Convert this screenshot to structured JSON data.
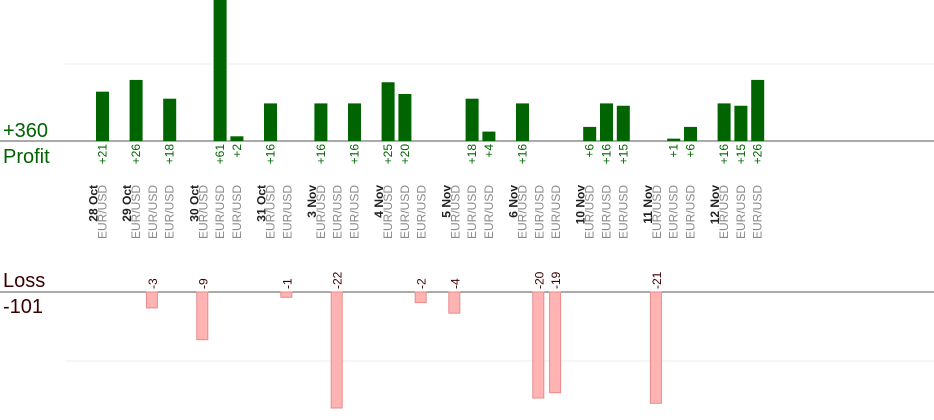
{
  "summary": {
    "profit_total": "+360",
    "profit_label": "Profit",
    "loss_label": "Loss",
    "loss_total": "-101"
  },
  "chart_data": {
    "type": "bar",
    "pair_label": "EUR/USD",
    "date_groups": [
      {
        "date": "28 Oct",
        "trades": [
          21
        ]
      },
      {
        "date": "29 Oct",
        "trades": [
          26,
          -3,
          18
        ]
      },
      {
        "date": "30 Oct",
        "trades": [
          -9,
          61,
          2
        ]
      },
      {
        "date": "31 Oct",
        "trades": [
          16,
          -1
        ]
      },
      {
        "date": "3 Nov",
        "trades": [
          16,
          -22,
          16
        ]
      },
      {
        "date": "4 Nov",
        "trades": [
          25,
          20,
          -2
        ]
      },
      {
        "date": "5 Nov",
        "trades": [
          -4,
          18,
          4
        ]
      },
      {
        "date": "6 Nov",
        "trades": [
          16,
          -20,
          -19
        ]
      },
      {
        "date": "10 Nov",
        "trades": [
          6,
          16,
          15
        ]
      },
      {
        "date": "11 Nov",
        "trades": [
          -21,
          1,
          6
        ]
      },
      {
        "date": "12 Nov",
        "trades": [
          16,
          15,
          26
        ]
      }
    ],
    "colors": {
      "profit": "#006400",
      "loss": "#ffb3b3",
      "loss_border": "#e88a8a"
    }
  }
}
